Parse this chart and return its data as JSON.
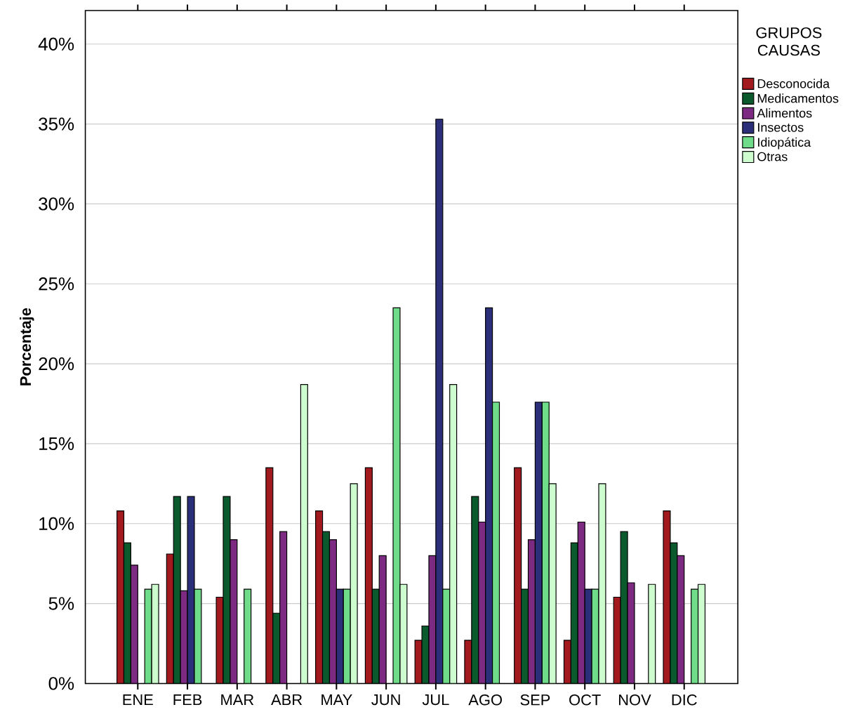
{
  "chart_data": {
    "type": "bar",
    "ylabel": "Porcentaje",
    "legend_title": "GRUPOS CAUSAS",
    "legend": "top right",
    "grid": "y",
    "categories": [
      "ENE",
      "FEB",
      "MAR",
      "ABR",
      "MAY",
      "JUN",
      "JUL",
      "AGO",
      "SEP",
      "OCT",
      "NOV",
      "DIC"
    ],
    "ylim": [
      0,
      42.1
    ],
    "yticks": [
      {
        "value": 0,
        "label": "0%"
      },
      {
        "value": 5,
        "label": "5%"
      },
      {
        "value": 10,
        "label": "10%"
      },
      {
        "value": 15,
        "label": "15%"
      },
      {
        "value": 20,
        "label": "20%"
      },
      {
        "value": 25,
        "label": "25%"
      },
      {
        "value": 30,
        "label": "30%"
      },
      {
        "value": 35,
        "label": "35%"
      },
      {
        "value": 40,
        "label": "40%"
      }
    ],
    "series": [
      {
        "name": "Desconocida",
        "color": "#a31a1e",
        "values": [
          10.8,
          8.1,
          5.4,
          13.5,
          10.8,
          13.5,
          2.7,
          2.7,
          13.5,
          2.7,
          5.4,
          10.8
        ]
      },
      {
        "name": "Medicamentos",
        "color": "#0b5a2e",
        "values": [
          8.8,
          11.7,
          11.7,
          4.4,
          9.5,
          5.9,
          3.6,
          11.7,
          5.9,
          8.8,
          9.5,
          8.8
        ]
      },
      {
        "name": "Alimentos",
        "color": "#7c2a82",
        "values": [
          7.4,
          5.8,
          9.0,
          9.5,
          9.0,
          8.0,
          8.0,
          10.1,
          9.0,
          10.1,
          6.3,
          8.0
        ]
      },
      {
        "name": "Insectos",
        "color": "#2b2f7a",
        "values": [
          null,
          11.7,
          null,
          null,
          5.9,
          null,
          35.3,
          23.5,
          17.6,
          5.9,
          null,
          null
        ]
      },
      {
        "name": "Idiopática",
        "color": "#6edc88",
        "values": [
          5.9,
          5.9,
          5.9,
          null,
          5.9,
          23.5,
          5.9,
          17.6,
          17.6,
          5.9,
          null,
          5.9
        ]
      },
      {
        "name": "Otras",
        "color": "#cdfccf",
        "values": [
          6.2,
          null,
          null,
          18.7,
          12.5,
          6.2,
          18.7,
          null,
          12.5,
          12.5,
          6.2,
          6.2
        ]
      }
    ]
  }
}
